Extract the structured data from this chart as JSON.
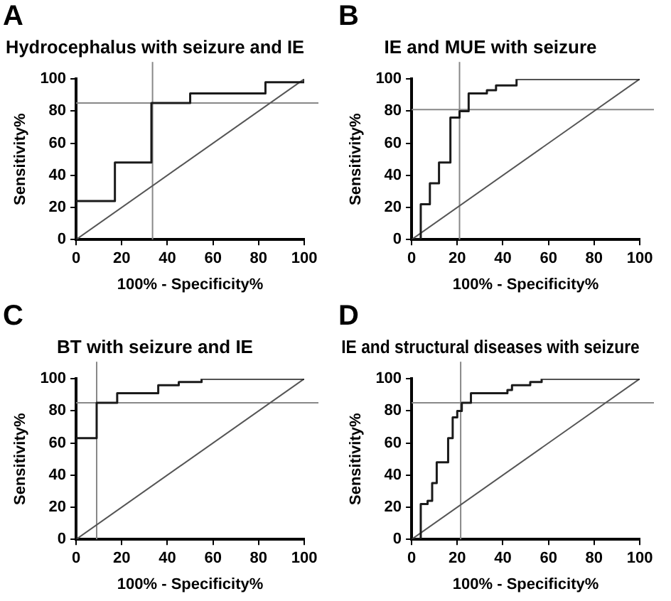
{
  "chart_data": [
    {
      "type": "line",
      "title": "Hydrocephalus with seizure and IE",
      "xlabel": "100% - Specificity%",
      "ylabel": "Sensitivity%",
      "annotations": [
        "A"
      ],
      "xlim": [
        0,
        100
      ],
      "ylim": [
        0,
        100
      ],
      "xticks": [
        0,
        20,
        40,
        60,
        80,
        100
      ],
      "yticks": [
        0,
        20,
        40,
        60,
        80,
        100
      ],
      "grid": false,
      "legend": false,
      "marker": "none",
      "series": [
        {
          "color": "#1a1a1a",
          "x": [
            0,
            0,
            17,
            17,
            33,
            33,
            50,
            50,
            83,
            83,
            100,
            100
          ],
          "values": [
            0,
            24,
            24,
            48,
            48,
            85,
            85,
            91,
            91,
            98,
            98,
            100
          ]
        },
        {
          "color": "#555555",
          "x": [
            0,
            100
          ],
          "values": [
            0,
            100
          ]
        }
      ],
      "ref_lines": [
        {
          "axis": "x",
          "value": 33.5,
          "color": "#888888"
        },
        {
          "axis": "y",
          "value": 85,
          "color": "#888888"
        }
      ]
    },
    {
      "type": "line",
      "title": "IE and MUE with seizure",
      "xlabel": "100% - Specificity%",
      "ylabel": "Sensitivity%",
      "annotations": [
        "B"
      ],
      "xlim": [
        0,
        100
      ],
      "ylim": [
        0,
        100
      ],
      "xticks": [
        0,
        20,
        40,
        60,
        80,
        100
      ],
      "yticks": [
        0,
        20,
        40,
        60,
        80,
        100
      ],
      "grid": false,
      "legend": false,
      "marker": "none",
      "series": [
        {
          "color": "#1a1a1a",
          "x": [
            0,
            4,
            4,
            8,
            8,
            12,
            12,
            17,
            17,
            21,
            21,
            25,
            25,
            33,
            33,
            37,
            37,
            46,
            46,
            100
          ],
          "values": [
            0,
            0,
            22,
            22,
            35,
            35,
            48,
            48,
            76,
            76,
            80,
            80,
            91,
            91,
            93,
            93,
            96,
            96,
            100,
            100
          ]
        },
        {
          "color": "#555555",
          "x": [
            0,
            100
          ],
          "values": [
            0,
            100
          ]
        }
      ],
      "ref_lines": [
        {
          "axis": "x",
          "value": 21,
          "color": "#888888"
        },
        {
          "axis": "y",
          "value": 81,
          "color": "#888888"
        }
      ]
    },
    {
      "type": "line",
      "title": "BT with seizure and IE",
      "xlabel": "100% - Specificity%",
      "ylabel": "Sensitivity%",
      "annotations": [
        "C"
      ],
      "xlim": [
        0,
        100
      ],
      "ylim": [
        0,
        100
      ],
      "xticks": [
        0,
        20,
        40,
        60,
        80,
        100
      ],
      "yticks": [
        0,
        20,
        40,
        60,
        80,
        100
      ],
      "grid": false,
      "legend": false,
      "marker": "none",
      "series": [
        {
          "color": "#1a1a1a",
          "x": [
            0,
            0,
            9,
            9,
            18,
            18,
            36,
            36,
            45,
            45,
            55,
            55,
            100
          ],
          "values": [
            0,
            63,
            63,
            85,
            85,
            91,
            91,
            96,
            96,
            98,
            98,
            100,
            100
          ]
        },
        {
          "color": "#555555",
          "x": [
            0,
            100
          ],
          "values": [
            0,
            100
          ]
        }
      ],
      "ref_lines": [
        {
          "axis": "x",
          "value": 9,
          "color": "#888888"
        },
        {
          "axis": "y",
          "value": 85,
          "color": "#888888"
        }
      ]
    },
    {
      "type": "line",
      "title": "IE and structural diseases with seizure",
      "xlabel": "100% - Specificity%",
      "ylabel": "Sensitivity%",
      "annotations": [
        "D"
      ],
      "xlim": [
        0,
        100
      ],
      "ylim": [
        0,
        100
      ],
      "xticks": [
        0,
        20,
        40,
        60,
        80,
        100
      ],
      "yticks": [
        0,
        20,
        40,
        60,
        80,
        100
      ],
      "grid": false,
      "legend": false,
      "marker": "none",
      "series": [
        {
          "color": "#1a1a1a",
          "x": [
            0,
            4,
            4,
            7,
            7,
            9,
            9,
            11,
            11,
            16,
            16,
            18,
            18,
            20,
            20,
            22,
            22,
            26,
            26,
            42,
            42,
            44,
            44,
            52,
            52,
            57,
            57,
            100
          ],
          "values": [
            0,
            0,
            22,
            22,
            24,
            24,
            35,
            35,
            48,
            48,
            63,
            63,
            76,
            76,
            80,
            80,
            85,
            85,
            91,
            91,
            93,
            93,
            96,
            96,
            98,
            98,
            100,
            100
          ]
        },
        {
          "color": "#555555",
          "x": [
            0,
            100
          ],
          "values": [
            0,
            100
          ]
        }
      ],
      "ref_lines": [
        {
          "axis": "x",
          "value": 21.5,
          "color": "#888888"
        },
        {
          "axis": "y",
          "value": 85,
          "color": "#888888"
        }
      ]
    }
  ]
}
